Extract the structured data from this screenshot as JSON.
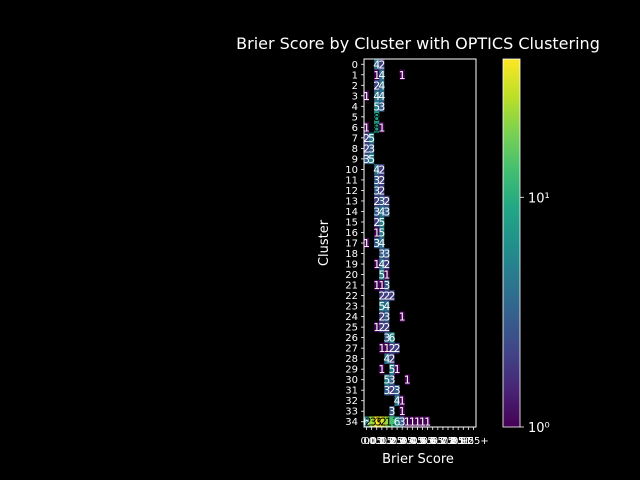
{
  "chart_data": {
    "type": "heatmap",
    "title": "Brier Score by Cluster with OPTICS Clustering",
    "xlabel": "Brier Score",
    "ylabel": "Cluster",
    "y_categories": [
      "0",
      "1",
      "2",
      "3",
      "4",
      "5",
      "6",
      "7",
      "8",
      "9",
      "10",
      "11",
      "12",
      "13",
      "14",
      "15",
      "16",
      "17",
      "18",
      "19",
      "20",
      "21",
      "22",
      "23",
      "24",
      "25",
      "26",
      "27",
      "28",
      "29",
      "30",
      "31",
      "32",
      "33",
      "34"
    ],
    "x_categories": [
      "0",
      "0.05",
      "0.1",
      "0.15",
      "0.2",
      "0.25",
      "0.3",
      "0.35",
      "0.4",
      "0.45",
      "0.5",
      "0.55",
      "0.6",
      "0.65",
      "0.7",
      "0.75",
      "0.8",
      "0.85",
      "0.9",
      "0.95",
      "1",
      "1.25+"
    ],
    "x_tick_labels": [
      "0",
      "0.05",
      "0.1",
      "0.15",
      "0.2",
      "0.25",
      "0.3",
      "0.35",
      "0.4",
      "0.45",
      "0.5",
      "0.55",
      "0.6",
      "0.65",
      "0.7",
      "0.75",
      "0.8",
      "0.85",
      "0.9",
      "0.95",
      "1",
      "1.25+"
    ],
    "colorbar": {
      "scale": "log",
      "min": 1,
      "max": 40,
      "ticks": [
        1,
        10
      ],
      "tick_labels": [
        "10⁰",
        "10¹"
      ],
      "colormap": "viridis"
    },
    "cells": [
      {
        "row": 0,
        "col": 2,
        "value": 4
      },
      {
        "row": 0,
        "col": 3,
        "value": 2
      },
      {
        "row": 1,
        "col": 2,
        "value": 1
      },
      {
        "row": 1,
        "col": 3,
        "value": 4
      },
      {
        "row": 1,
        "col": 7,
        "value": 1
      },
      {
        "row": 2,
        "col": 2,
        "value": 2
      },
      {
        "row": 2,
        "col": 3,
        "value": 4
      },
      {
        "row": 3,
        "col": 0,
        "value": 1
      },
      {
        "row": 3,
        "col": 2,
        "value": 4
      },
      {
        "row": 3,
        "col": 3,
        "value": 4
      },
      {
        "row": 4,
        "col": 2,
        "value": 5
      },
      {
        "row": 4,
        "col": 3,
        "value": 3
      },
      {
        "row": 5,
        "col": 2,
        "value": 8
      },
      {
        "row": 6,
        "col": 0,
        "value": 1
      },
      {
        "row": 6,
        "col": 2,
        "value": 8
      },
      {
        "row": 6,
        "col": 3,
        "value": 1
      },
      {
        "row": 7,
        "col": 0,
        "value": 2
      },
      {
        "row": 7,
        "col": 1,
        "value": 5
      },
      {
        "row": 8,
        "col": 0,
        "value": 2
      },
      {
        "row": 8,
        "col": 1,
        "value": 3
      },
      {
        "row": 9,
        "col": 0,
        "value": 3
      },
      {
        "row": 9,
        "col": 1,
        "value": 5
      },
      {
        "row": 10,
        "col": 2,
        "value": 4
      },
      {
        "row": 10,
        "col": 3,
        "value": 2
      },
      {
        "row": 11,
        "col": 2,
        "value": 3
      },
      {
        "row": 11,
        "col": 3,
        "value": 2
      },
      {
        "row": 12,
        "col": 2,
        "value": 3
      },
      {
        "row": 12,
        "col": 3,
        "value": 2
      },
      {
        "row": 13,
        "col": 2,
        "value": 2
      },
      {
        "row": 13,
        "col": 3,
        "value": 3
      },
      {
        "row": 13,
        "col": 4,
        "value": 2
      },
      {
        "row": 14,
        "col": 2,
        "value": 3
      },
      {
        "row": 14,
        "col": 3,
        "value": 4
      },
      {
        "row": 14,
        "col": 4,
        "value": 3
      },
      {
        "row": 15,
        "col": 2,
        "value": 2
      },
      {
        "row": 15,
        "col": 3,
        "value": 5
      },
      {
        "row": 16,
        "col": 2,
        "value": 1
      },
      {
        "row": 16,
        "col": 3,
        "value": 5
      },
      {
        "row": 17,
        "col": 0,
        "value": 1
      },
      {
        "row": 17,
        "col": 2,
        "value": 3
      },
      {
        "row": 17,
        "col": 3,
        "value": 4
      },
      {
        "row": 18,
        "col": 3,
        "value": 3
      },
      {
        "row": 18,
        "col": 4,
        "value": 3
      },
      {
        "row": 19,
        "col": 2,
        "value": 1
      },
      {
        "row": 19,
        "col": 3,
        "value": 4
      },
      {
        "row": 19,
        "col": 4,
        "value": 2
      },
      {
        "row": 20,
        "col": 3,
        "value": 5
      },
      {
        "row": 20,
        "col": 4,
        "value": 1
      },
      {
        "row": 21,
        "col": 2,
        "value": 1
      },
      {
        "row": 21,
        "col": 3,
        "value": 1
      },
      {
        "row": 21,
        "col": 4,
        "value": 3
      },
      {
        "row": 22,
        "col": 3,
        "value": 2
      },
      {
        "row": 22,
        "col": 4,
        "value": 2
      },
      {
        "row": 22,
        "col": 5,
        "value": 2
      },
      {
        "row": 23,
        "col": 3,
        "value": 5
      },
      {
        "row": 23,
        "col": 4,
        "value": 4
      },
      {
        "row": 24,
        "col": 3,
        "value": 2
      },
      {
        "row": 24,
        "col": 4,
        "value": 3
      },
      {
        "row": 24,
        "col": 7,
        "value": 1
      },
      {
        "row": 25,
        "col": 2,
        "value": 1
      },
      {
        "row": 25,
        "col": 3,
        "value": 2
      },
      {
        "row": 25,
        "col": 4,
        "value": 2
      },
      {
        "row": 26,
        "col": 4,
        "value": 3
      },
      {
        "row": 26,
        "col": 5,
        "value": 6
      },
      {
        "row": 27,
        "col": 3,
        "value": 1
      },
      {
        "row": 27,
        "col": 4,
        "value": 1
      },
      {
        "row": 27,
        "col": 5,
        "value": 2
      },
      {
        "row": 27,
        "col": 6,
        "value": 2
      },
      {
        "row": 28,
        "col": 4,
        "value": 4
      },
      {
        "row": 28,
        "col": 5,
        "value": 2
      },
      {
        "row": 29,
        "col": 3,
        "value": 1
      },
      {
        "row": 29,
        "col": 5,
        "value": 5
      },
      {
        "row": 29,
        "col": 6,
        "value": 1
      },
      {
        "row": 30,
        "col": 4,
        "value": 5
      },
      {
        "row": 30,
        "col": 5,
        "value": 3
      },
      {
        "row": 30,
        "col": 8,
        "value": 1
      },
      {
        "row": 31,
        "col": 4,
        "value": 3
      },
      {
        "row": 31,
        "col": 5,
        "value": 2
      },
      {
        "row": 31,
        "col": 6,
        "value": 3
      },
      {
        "row": 32,
        "col": 6,
        "value": 4
      },
      {
        "row": 32,
        "col": 7,
        "value": 1
      },
      {
        "row": 33,
        "col": 5,
        "value": 3
      },
      {
        "row": 33,
        "col": 7,
        "value": 1
      },
      {
        "row": 34,
        "col": 0,
        "value": 6
      },
      {
        "row": 34,
        "col": 1,
        "value": 23
      },
      {
        "row": 34,
        "col": 2,
        "value": 39
      },
      {
        "row": 34,
        "col": 3,
        "value": 33
      },
      {
        "row": 34,
        "col": 4,
        "value": 23
      },
      {
        "row": 34,
        "col": 5,
        "value": 13
      },
      {
        "row": 34,
        "col": 6,
        "value": 6
      },
      {
        "row": 34,
        "col": 7,
        "value": 3
      },
      {
        "row": 34,
        "col": 8,
        "value": 1
      },
      {
        "row": 34,
        "col": 9,
        "value": 1
      },
      {
        "row": 34,
        "col": 10,
        "value": 1
      },
      {
        "row": 34,
        "col": 11,
        "value": 1
      },
      {
        "row": 34,
        "col": 12,
        "value": 1
      }
    ]
  }
}
